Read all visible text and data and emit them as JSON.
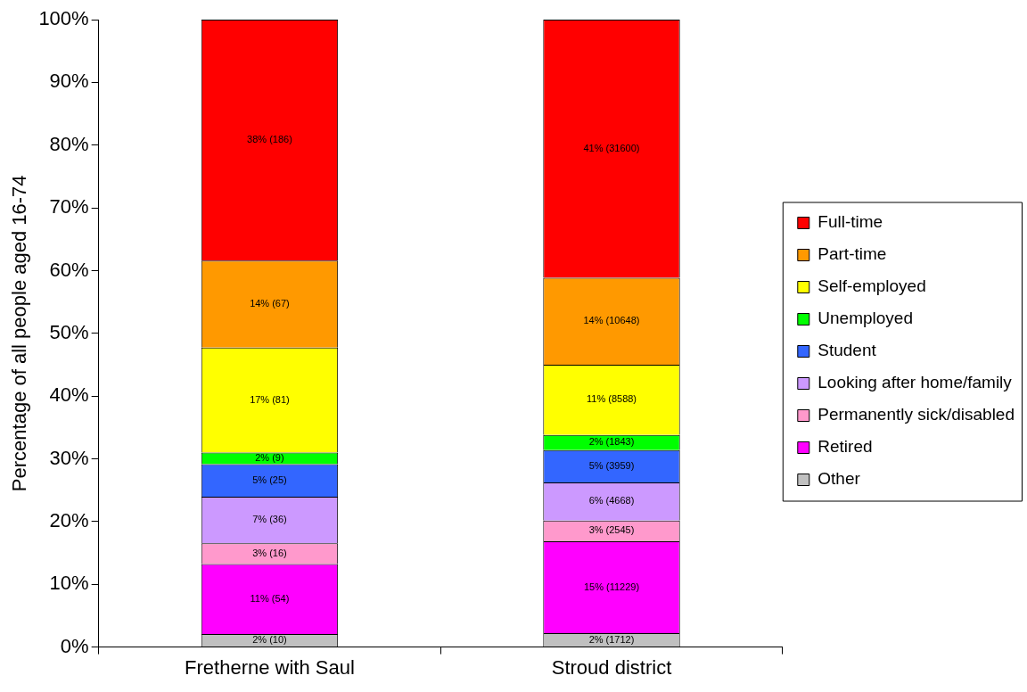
{
  "chart_data": {
    "type": "bar",
    "stacked": true,
    "ylabel": "Percentage of all people aged 16-74",
    "categories": [
      "Fretherne with Saul",
      "Stroud district"
    ],
    "ylim": [
      0,
      100
    ],
    "yticks": [
      {
        "value": 0,
        "label": "0%"
      },
      {
        "value": 10,
        "label": "10%"
      },
      {
        "value": 20,
        "label": "20%"
      },
      {
        "value": 30,
        "label": "30%"
      },
      {
        "value": 40,
        "label": "40%"
      },
      {
        "value": 50,
        "label": "50%"
      },
      {
        "value": 60,
        "label": "60%"
      },
      {
        "value": 70,
        "label": "70%"
      },
      {
        "value": 80,
        "label": "80%"
      },
      {
        "value": 90,
        "label": "90%"
      },
      {
        "value": 100,
        "label": "100%"
      }
    ],
    "grid": false,
    "legend": "right",
    "series": [
      {
        "name": "Other",
        "color": "#c0c0c0",
        "values": [
          2.07,
          2.23
        ],
        "value_labels": [
          "2% (10)",
          "2% (1712)"
        ]
      },
      {
        "name": "Retired",
        "color": "#ff00ff",
        "values": [
          11.16,
          14.62
        ],
        "value_labels": [
          "11% (54)",
          "15% (11229)"
        ]
      },
      {
        "name": "Permanently sick/disabled",
        "color": "#ff99cc",
        "values": [
          3.31,
          3.31
        ],
        "value_labels": [
          "3% (16)",
          "3% (2545)"
        ]
      },
      {
        "name": "Looking after home/family",
        "color": "#cc99ff",
        "values": [
          7.44,
          6.08
        ],
        "value_labels": [
          "7% (36)",
          "6% (4668)"
        ]
      },
      {
        "name": "Student",
        "color": "#3366ff",
        "values": [
          5.17,
          5.16
        ],
        "value_labels": [
          "5% (25)",
          "5% (3959)"
        ]
      },
      {
        "name": "Unemployed",
        "color": "#00ff00",
        "values": [
          1.86,
          2.4
        ],
        "value_labels": [
          "2% (9)",
          "2% (1843)"
        ]
      },
      {
        "name": "Self-employed",
        "color": "#ffff00",
        "values": [
          16.74,
          11.18
        ],
        "value_labels": [
          "17% (81)",
          "11% (8588)"
        ]
      },
      {
        "name": "Part-time",
        "color": "#ff9900",
        "values": [
          13.84,
          13.87
        ],
        "value_labels": [
          "14% (67)",
          "14% (10648)"
        ]
      },
      {
        "name": "Full-time",
        "color": "#ff0000",
        "values": [
          38.41,
          41.15
        ],
        "value_labels": [
          "38% (186)",
          "41% (31600)"
        ]
      }
    ]
  }
}
